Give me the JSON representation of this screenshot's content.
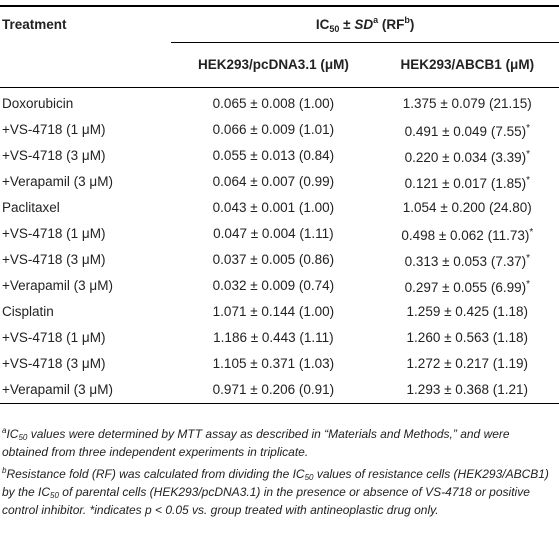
{
  "header": {
    "treatment": "Treatment",
    "ic_prefix": "IC",
    "ic_sub": "50",
    "pm": " ± ",
    "sd": "SD",
    "sd_sup": "a",
    "rf_open": " (RF",
    "rf_sup": "b",
    "rf_close": ")",
    "col_a": "HEK293/pcDNA3.1 (μM)",
    "col_b": "HEK293/ABCB1 (μM)"
  },
  "rows": [
    {
      "treatment": "Doxorubicin",
      "a": "0.065 ± 0.008 (1.00)",
      "b": "1.375 ± 0.079 (21.15)",
      "star": ""
    },
    {
      "treatment": "+VS-4718 (1 μM)",
      "a": "0.066 ± 0.009 (1.01)",
      "b": "0.491 ± 0.049 (7.55)",
      "star": "*"
    },
    {
      "treatment": "+VS-4718 (3 μM)",
      "a": "0.055 ± 0.013 (0.84)",
      "b": "0.220 ± 0.034 (3.39)",
      "star": "*"
    },
    {
      "treatment": "+Verapamil (3 μM)",
      "a": "0.064 ± 0.007 (0.99)",
      "b": "0.121 ± 0.017 (1.85)",
      "star": "*"
    },
    {
      "treatment": "Paclitaxel",
      "a": "0.043 ± 0.001 (1.00)",
      "b": "1.054 ± 0.200 (24.80)",
      "star": ""
    },
    {
      "treatment": "+VS-4718 (1 μM)",
      "a": "0.047 ± 0.004 (1.11)",
      "b": "0.498 ± 0.062 (11.73)",
      "star": "*"
    },
    {
      "treatment": "+VS-4718 (3 μM)",
      "a": "0.037 ± 0.005 (0.86)",
      "b": "0.313 ± 0.053 (7.37)",
      "star": "*"
    },
    {
      "treatment": "+Verapamil (3 μM)",
      "a": "0.032 ± 0.009 (0.74)",
      "b": "0.297 ± 0.055 (6.99)",
      "star": "*"
    },
    {
      "treatment": "Cisplatin",
      "a": "1.071 ± 0.144 (1.00)",
      "b": "1.259 ± 0.425 (1.18)",
      "star": ""
    },
    {
      "treatment": "+VS-4718 (1 μM)",
      "a": "1.186 ± 0.443 (1.11)",
      "b": "1.260 ± 0.563 (1.18)",
      "star": ""
    },
    {
      "treatment": "+VS-4718 (3 μM)",
      "a": "1.105 ± 0.371 (1.03)",
      "b": "1.272 ± 0.217 (1.19)",
      "star": ""
    },
    {
      "treatment": "+Verapamil (3 μM)",
      "a": "0.971 ± 0.206 (0.91)",
      "b": "1.293 ± 0.368 (1.21)",
      "star": ""
    }
  ],
  "footnotes": {
    "a_mark": "a",
    "a_pre": "IC",
    "a_sub": "50",
    "a_text": " values were determined by MTT assay as described in “Materials and Methods,” and were obtained from three independent experiments in triplicate.",
    "b_mark": "b",
    "b_text1": "Resistance fold (RF) was calculated from dividing the IC",
    "b_sub1": "50",
    "b_text2": " values of resistance cells (HEK293/ABCB1) by the IC",
    "b_sub2": "50",
    "b_text3": " of parental cells (HEK293/pcDNA3.1) in the presence or absence of VS-4718 or positive control inhibitor. *indicates p < 0.05 vs. group treated with antineoplastic drug only."
  }
}
